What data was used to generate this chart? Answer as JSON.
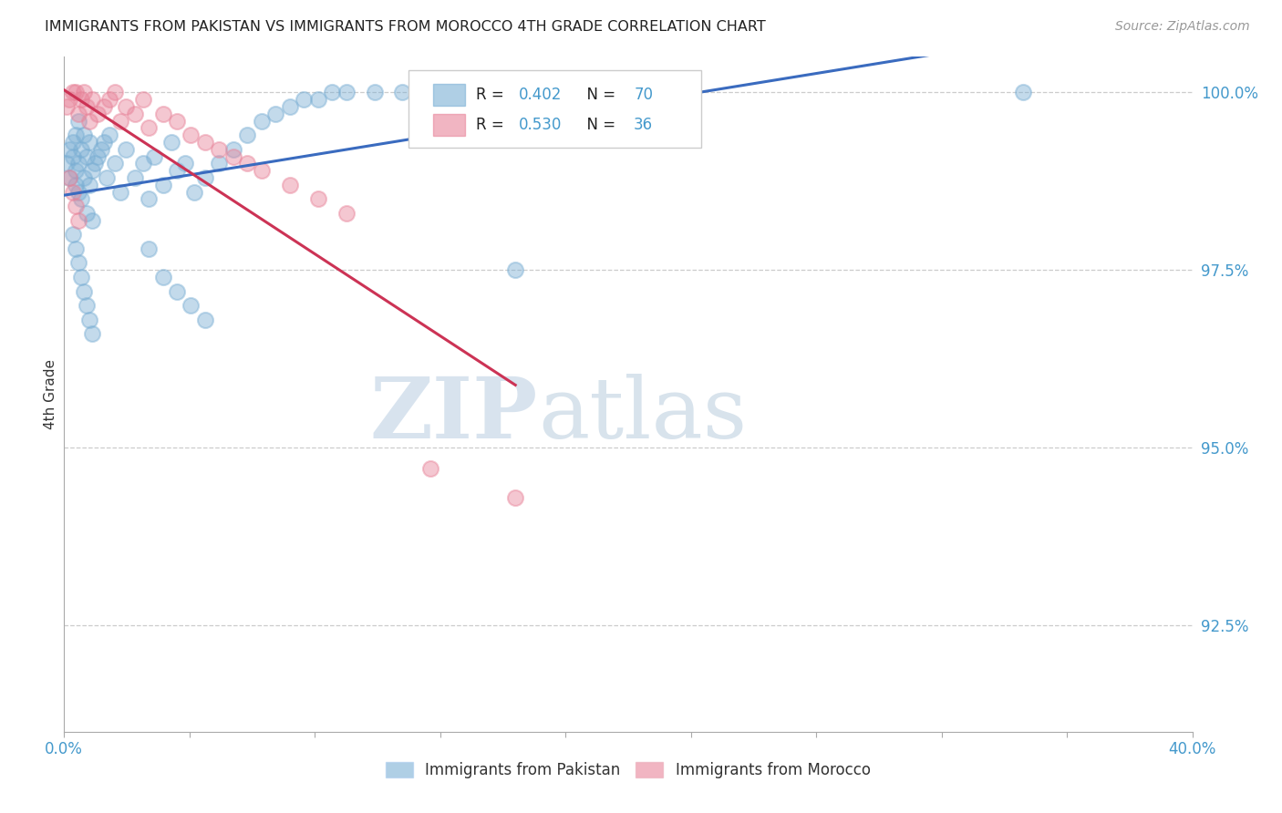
{
  "title": "IMMIGRANTS FROM PAKISTAN VS IMMIGRANTS FROM MOROCCO 4TH GRADE CORRELATION CHART",
  "source": "Source: ZipAtlas.com",
  "xlabel_blue": "Immigrants from Pakistan",
  "xlabel_pink": "Immigrants from Morocco",
  "ylabel": "4th Grade",
  "blue_R": 0.402,
  "blue_N": 70,
  "pink_R": 0.53,
  "pink_N": 36,
  "xlim": [
    0.0,
    0.4
  ],
  "ylim": [
    0.91,
    1.005
  ],
  "yticks": [
    0.925,
    0.95,
    0.975,
    1.0
  ],
  "ytick_labels": [
    "92.5%",
    "95.0%",
    "97.5%",
    "100.0%"
  ],
  "xtick_labels": [
    "0.0%",
    "",
    "",
    "",
    "",
    "",
    "",
    "",
    "",
    "40.0%"
  ],
  "blue_color": "#7bafd4",
  "pink_color": "#e8849a",
  "blue_line_color": "#3a6bbf",
  "pink_line_color": "#cc3355",
  "axis_color": "#4499cc",
  "grid_color": "#cccccc",
  "title_color": "#222222",
  "blue_scatter_x": [
    0.001,
    0.002,
    0.002,
    0.003,
    0.003,
    0.004,
    0.004,
    0.004,
    0.005,
    0.005,
    0.005,
    0.006,
    0.006,
    0.007,
    0.007,
    0.008,
    0.008,
    0.009,
    0.009,
    0.01,
    0.01,
    0.011,
    0.012,
    0.013,
    0.014,
    0.015,
    0.016,
    0.018,
    0.02,
    0.022,
    0.025,
    0.028,
    0.03,
    0.032,
    0.035,
    0.038,
    0.04,
    0.043,
    0.046,
    0.05,
    0.055,
    0.06,
    0.065,
    0.07,
    0.075,
    0.08,
    0.085,
    0.09,
    0.095,
    0.1,
    0.11,
    0.12,
    0.13,
    0.15,
    0.17,
    0.03,
    0.035,
    0.04,
    0.045,
    0.05,
    0.003,
    0.004,
    0.005,
    0.006,
    0.007,
    0.008,
    0.009,
    0.01,
    0.34,
    0.16
  ],
  "blue_scatter_y": [
    0.99,
    0.992,
    0.988,
    0.991,
    0.993,
    0.987,
    0.989,
    0.994,
    0.986,
    0.99,
    0.996,
    0.985,
    0.992,
    0.988,
    0.994,
    0.983,
    0.991,
    0.987,
    0.993,
    0.982,
    0.989,
    0.99,
    0.991,
    0.992,
    0.993,
    0.988,
    0.994,
    0.99,
    0.986,
    0.992,
    0.988,
    0.99,
    0.985,
    0.991,
    0.987,
    0.993,
    0.989,
    0.99,
    0.986,
    0.988,
    0.99,
    0.992,
    0.994,
    0.996,
    0.997,
    0.998,
    0.999,
    0.999,
    1.0,
    1.0,
    1.0,
    1.0,
    1.0,
    1.0,
    1.0,
    0.978,
    0.974,
    0.972,
    0.97,
    0.968,
    0.98,
    0.978,
    0.976,
    0.974,
    0.972,
    0.97,
    0.968,
    0.966,
    1.0,
    0.975
  ],
  "pink_scatter_x": [
    0.001,
    0.002,
    0.003,
    0.004,
    0.005,
    0.006,
    0.007,
    0.008,
    0.009,
    0.01,
    0.012,
    0.014,
    0.016,
    0.018,
    0.02,
    0.022,
    0.025,
    0.028,
    0.03,
    0.035,
    0.04,
    0.045,
    0.05,
    0.055,
    0.06,
    0.065,
    0.07,
    0.08,
    0.09,
    0.1,
    0.002,
    0.003,
    0.004,
    0.005,
    0.13,
    0.16
  ],
  "pink_scatter_y": [
    0.998,
    0.999,
    1.0,
    1.0,
    0.997,
    0.999,
    1.0,
    0.998,
    0.996,
    0.999,
    0.997,
    0.998,
    0.999,
    1.0,
    0.996,
    0.998,
    0.997,
    0.999,
    0.995,
    0.997,
    0.996,
    0.994,
    0.993,
    0.992,
    0.991,
    0.99,
    0.989,
    0.987,
    0.985,
    0.983,
    0.988,
    0.986,
    0.984,
    0.982,
    0.947,
    0.943
  ]
}
